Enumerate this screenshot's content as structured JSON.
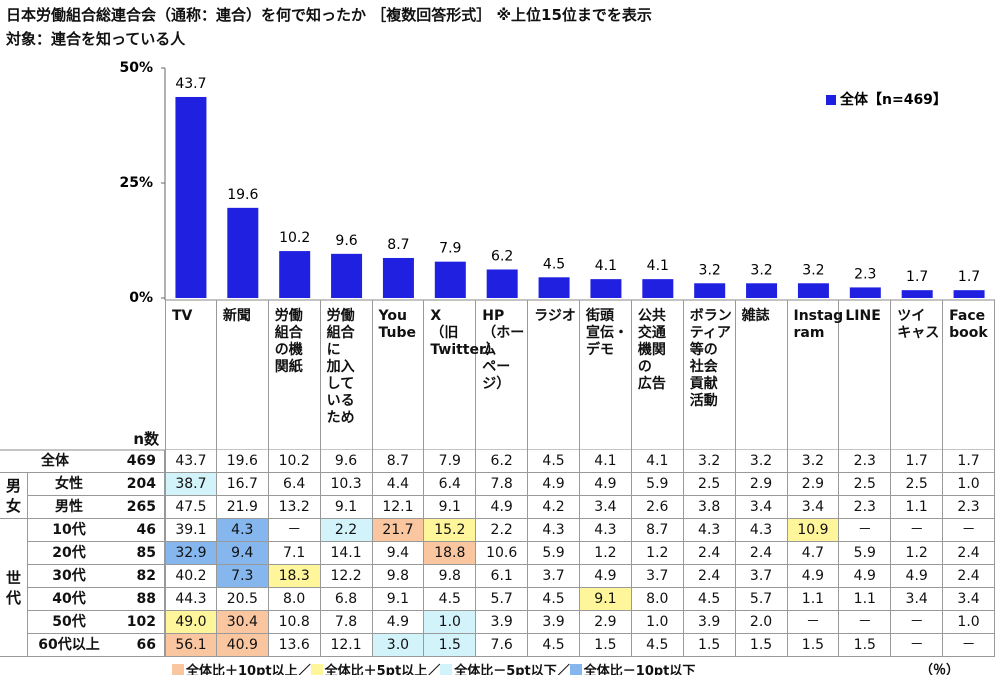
{
  "title": "日本労働組合総連合会（通称：連合）を何で知ったか ［複数回答形式］ ※上位15位までを表示",
  "subtitle": "対象：連合を知っている人",
  "chart_data": {
    "type": "bar",
    "categories": [
      "TV",
      "新聞",
      "労働\n組合\nの機\n関紙",
      "労働\n組合\nに\n加入\nして\nいる\nため",
      "You\nTube",
      "X\n（旧\nTwitter）",
      "HP\n（ホーム\nページ）",
      "ラジオ",
      "街頭\n宣伝・\nデモ",
      "公共\n交通\n機関\nの\n広告",
      "ボラン\nティア\n等の\n社会\n貢献\n活動",
      "雑誌",
      "Instag\nram",
      "LINE",
      "ツイ\nキャス",
      "Face\nbook"
    ],
    "series": [
      {
        "name": "全体【n=469】",
        "color": "#2020e0",
        "values": [
          43.7,
          19.6,
          10.2,
          9.6,
          8.7,
          7.9,
          6.2,
          4.5,
          4.1,
          4.1,
          3.2,
          3.2,
          3.2,
          2.3,
          1.7,
          1.7
        ]
      }
    ],
    "ylim": [
      0,
      50
    ],
    "yticks": [
      {
        "value": 0,
        "label": "0%"
      },
      {
        "value": 25,
        "label": "25%"
      },
      {
        "value": 50,
        "label": "50%"
      }
    ],
    "legend": "top-right"
  },
  "table": {
    "n_header": "n数",
    "unit": "（％）",
    "highlight_legend": [
      {
        "label": "全体比＋10pt以上／",
        "color": "#f9c6a0"
      },
      {
        "label": "全体比＋5pt以上／",
        "color": "#fff59a"
      },
      {
        "label": "全体比－5pt以下／",
        "color": "#d3f3fa"
      },
      {
        "label": "全体比－10pt以下",
        "color": "#86b6ee"
      }
    ],
    "sections": [
      {
        "rows": [
          {
            "label": "全体",
            "n": 469,
            "cells": [
              "43.7",
              "19.6",
              "10.2",
              "9.6",
              "8.7",
              "7.9",
              "6.2",
              "4.5",
              "4.1",
              "4.1",
              "3.2",
              "3.2",
              "3.2",
              "2.3",
              "1.7",
              "1.7"
            ],
            "highlight": [
              null,
              null,
              null,
              null,
              null,
              null,
              null,
              null,
              null,
              null,
              null,
              null,
              null,
              null,
              null,
              null
            ]
          }
        ]
      },
      {
        "label": "男\n女",
        "rows": [
          {
            "label": "女性",
            "n": 204,
            "cells": [
              "38.7",
              "16.7",
              "6.4",
              "10.3",
              "4.4",
              "6.4",
              "7.8",
              "4.9",
              "4.9",
              "5.9",
              "2.5",
              "2.9",
              "2.9",
              "2.5",
              "2.5",
              "1.0"
            ],
            "highlight": [
              2,
              null,
              null,
              null,
              null,
              null,
              null,
              null,
              null,
              null,
              null,
              null,
              null,
              null,
              null,
              null
            ]
          },
          {
            "label": "男性",
            "n": 265,
            "cells": [
              "47.5",
              "21.9",
              "13.2",
              "9.1",
              "12.1",
              "9.1",
              "4.9",
              "4.2",
              "3.4",
              "2.6",
              "3.8",
              "3.4",
              "3.4",
              "2.3",
              "1.1",
              "2.3"
            ],
            "highlight": [
              null,
              null,
              null,
              null,
              null,
              null,
              null,
              null,
              null,
              null,
              null,
              null,
              null,
              null,
              null,
              null
            ]
          }
        ]
      },
      {
        "label": "世\n代",
        "rows": [
          {
            "label": "10代",
            "n": 46,
            "cells": [
              "39.1",
              "4.3",
              "－",
              "2.2",
              "21.7",
              "15.2",
              "2.2",
              "4.3",
              "4.3",
              "8.7",
              "4.3",
              "4.3",
              "10.9",
              "－",
              "－",
              "－"
            ],
            "highlight": [
              null,
              3,
              null,
              2,
              0,
              1,
              null,
              null,
              null,
              null,
              null,
              null,
              1,
              null,
              null,
              null
            ]
          },
          {
            "label": "20代",
            "n": 85,
            "cells": [
              "32.9",
              "9.4",
              "7.1",
              "14.1",
              "9.4",
              "18.8",
              "10.6",
              "5.9",
              "1.2",
              "1.2",
              "2.4",
              "2.4",
              "4.7",
              "5.9",
              "1.2",
              "2.4"
            ],
            "highlight": [
              3,
              3,
              null,
              null,
              null,
              0,
              null,
              null,
              null,
              null,
              null,
              null,
              null,
              null,
              null,
              null
            ]
          },
          {
            "label": "30代",
            "n": 82,
            "cells": [
              "40.2",
              "7.3",
              "18.3",
              "12.2",
              "9.8",
              "9.8",
              "6.1",
              "3.7",
              "4.9",
              "3.7",
              "2.4",
              "3.7",
              "4.9",
              "4.9",
              "4.9",
              "2.4"
            ],
            "highlight": [
              null,
              3,
              1,
              null,
              null,
              null,
              null,
              null,
              null,
              null,
              null,
              null,
              null,
              null,
              null,
              null
            ]
          },
          {
            "label": "40代",
            "n": 88,
            "cells": [
              "44.3",
              "20.5",
              "8.0",
              "6.8",
              "9.1",
              "4.5",
              "5.7",
              "4.5",
              "9.1",
              "8.0",
              "4.5",
              "5.7",
              "1.1",
              "1.1",
              "3.4",
              "3.4"
            ],
            "highlight": [
              null,
              null,
              null,
              null,
              null,
              null,
              null,
              null,
              1,
              null,
              null,
              null,
              null,
              null,
              null,
              null
            ]
          },
          {
            "label": "50代",
            "n": 102,
            "cells": [
              "49.0",
              "30.4",
              "10.8",
              "7.8",
              "4.9",
              "1.0",
              "3.9",
              "3.9",
              "2.9",
              "1.0",
              "3.9",
              "2.0",
              "－",
              "－",
              "－",
              "1.0"
            ],
            "highlight": [
              1,
              0,
              null,
              null,
              null,
              2,
              null,
              null,
              null,
              null,
              null,
              null,
              null,
              null,
              null,
              null
            ]
          },
          {
            "label": "60代以上",
            "n": 66,
            "cells": [
              "56.1",
              "40.9",
              "13.6",
              "12.1",
              "3.0",
              "1.5",
              "7.6",
              "4.5",
              "1.5",
              "4.5",
              "1.5",
              "1.5",
              "1.5",
              "1.5",
              "－",
              "－"
            ],
            "highlight": [
              0,
              0,
              null,
              null,
              2,
              2,
              null,
              null,
              null,
              null,
              null,
              null,
              null,
              null,
              null,
              null
            ]
          }
        ]
      }
    ]
  }
}
